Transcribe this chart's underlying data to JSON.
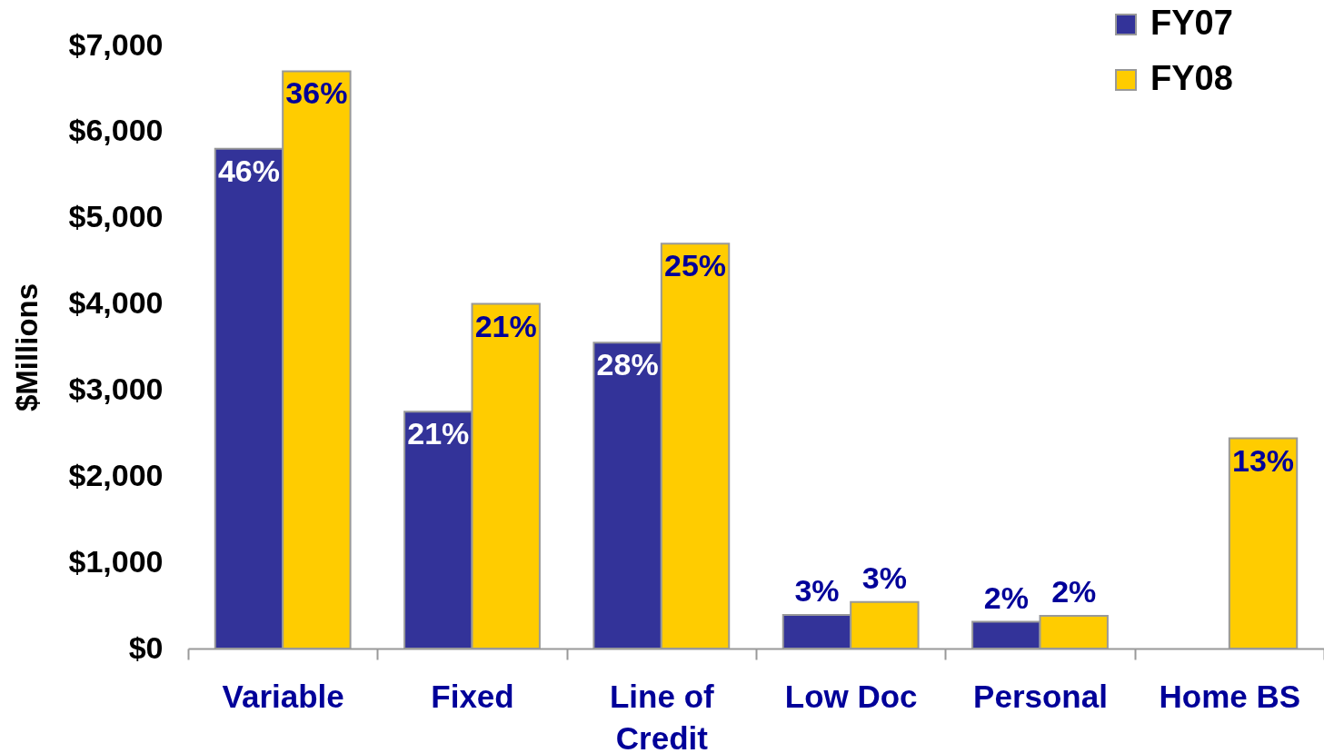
{
  "chart_data": {
    "type": "bar",
    "ylabel": "$Millions",
    "categories": [
      "Variable",
      "Fixed",
      "Line of Credit",
      "Low Doc",
      "Personal",
      "Home BS"
    ],
    "series": [
      {
        "name": "FY07",
        "color": "#333399",
        "values": [
          5800,
          2750,
          3550,
          390,
          310,
          null
        ]
      },
      {
        "name": "FY08",
        "color": "#ffcc00",
        "values": [
          6700,
          4000,
          4700,
          540,
          380,
          2440
        ]
      }
    ],
    "annotations": [
      {
        "text": "46%",
        "x": "Variable",
        "y": 5800
      },
      {
        "text": "21%",
        "x": "Fixed",
        "y": 2750
      },
      {
        "text": "28%",
        "x": "Line of Credit",
        "y": 3550
      },
      {
        "text": "3%",
        "x": "Low Doc",
        "y": 390
      },
      {
        "text": "2%",
        "x": "Personal",
        "y": 310
      },
      {
        "text": "36%",
        "x": "Variable",
        "y": 6700
      },
      {
        "text": "21%",
        "x": "Fixed",
        "y": 4000
      },
      {
        "text": "25%",
        "x": "Line of Credit",
        "y": 4700
      },
      {
        "text": "3%",
        "x": "Low Doc",
        "y": 540
      },
      {
        "text": "2%",
        "x": "Personal",
        "y": 380
      },
      {
        "text": "13%",
        "x": "Home BS",
        "y": 2440
      }
    ],
    "ylim": [
      0,
      7000
    ],
    "yticks": [
      {
        "value": 0,
        "label": "$0"
      },
      {
        "value": 1000,
        "label": "$1,000"
      },
      {
        "value": 2000,
        "label": "$2,000"
      },
      {
        "value": 3000,
        "label": "$3,000"
      },
      {
        "value": 4000,
        "label": "$4,000"
      },
      {
        "value": 5000,
        "label": "$5,000"
      },
      {
        "value": 6000,
        "label": "$6,000"
      },
      {
        "value": 7000,
        "label": "$7,000"
      }
    ],
    "legend": "top right"
  }
}
